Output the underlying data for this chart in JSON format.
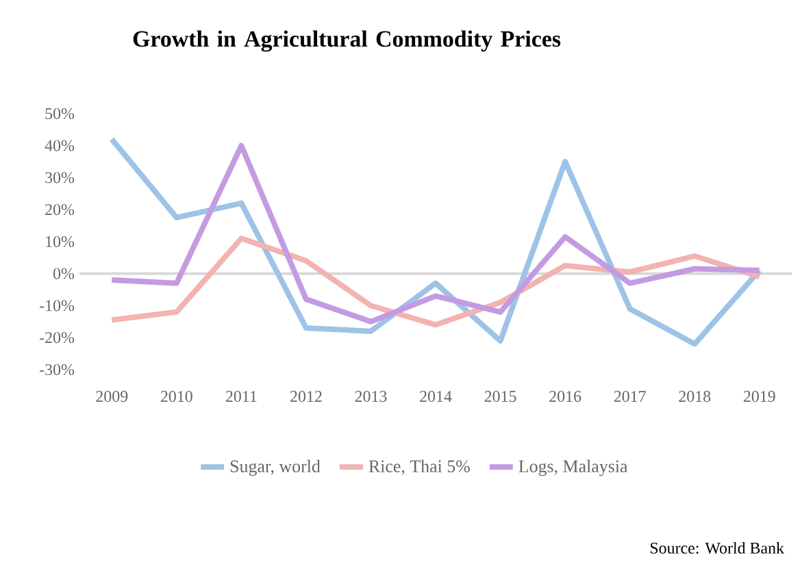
{
  "chart_data": {
    "type": "line",
    "title": "Growth in Agricultural Commodity Prices",
    "categories": [
      "2009",
      "2010",
      "2011",
      "2012",
      "2013",
      "2014",
      "2015",
      "2016",
      "2017",
      "2018",
      "2019"
    ],
    "series": [
      {
        "name": "Sugar, world",
        "color": "#9dc3e6",
        "values": [
          42,
          17.5,
          22,
          -17,
          -18,
          -3,
          -21,
          35,
          -11,
          -22,
          1
        ]
      },
      {
        "name": "Rice, Thai 5%",
        "color": "#f2b3b1",
        "values": [
          -14.5,
          -12,
          11,
          4,
          -10,
          -16,
          -9,
          2.5,
          0.5,
          5.5,
          -1
        ]
      },
      {
        "name": "Logs, Malaysia",
        "color": "#c39be2",
        "values": [
          -2,
          -3,
          40,
          -8,
          -15,
          -7,
          -12,
          11.5,
          -3,
          1.5,
          1
        ]
      }
    ],
    "ylim": [
      -30,
      50
    ],
    "yticks": [
      {
        "value": -30,
        "label": "-30%"
      },
      {
        "value": -20,
        "label": "-20%"
      },
      {
        "value": -10,
        "label": "-10%"
      },
      {
        "value": 0,
        "label": "0%"
      },
      {
        "value": 10,
        "label": "10%"
      },
      {
        "value": 20,
        "label": "20%"
      },
      {
        "value": 30,
        "label": "30%"
      },
      {
        "value": 40,
        "label": "40%"
      },
      {
        "value": 50,
        "label": "50%"
      }
    ],
    "ref_lines": [
      {
        "axis": "y",
        "value": 0,
        "color": "#d9d9d9"
      }
    ],
    "grid": false,
    "legend": "bottom",
    "marker": "none",
    "line_style": "solid",
    "annotations": [
      "Source: World Bank"
    ]
  }
}
